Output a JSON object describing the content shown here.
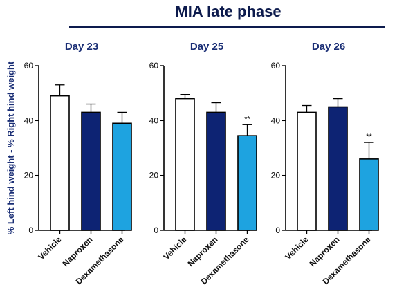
{
  "header": {
    "title": "MIA late phase",
    "ylabel": "% Left hind weight - % Right hind weight"
  },
  "colors": {
    "title": "#0d1b4d",
    "title_rule": "#0d1b4d",
    "panel_title": "#1a2e75",
    "Vehicle": "#ffffff",
    "Naproxen": "#0d2373",
    "Dexamethasone": "#1ea3e0",
    "axis": "#000000"
  },
  "chart_data": [
    {
      "type": "bar",
      "title": "Day 23",
      "categories": [
        "Vehicle",
        "Naproxen",
        "Dexamethasone"
      ],
      "values": [
        49,
        43,
        39
      ],
      "error": [
        4,
        3,
        4
      ],
      "significance": [
        "",
        "",
        ""
      ],
      "ylim": [
        0,
        60
      ],
      "yticks": [
        "0",
        "20",
        "40",
        "60"
      ],
      "ytick_values": [
        0,
        20,
        40,
        60
      ],
      "grid": false
    },
    {
      "type": "bar",
      "title": "Day 25",
      "categories": [
        "Vehicle",
        "Naproxen",
        "Dexamethasone"
      ],
      "values": [
        48,
        43,
        34.5
      ],
      "error": [
        1.5,
        3.5,
        4
      ],
      "significance": [
        "",
        "",
        "**"
      ],
      "ylim": [
        0,
        60
      ],
      "yticks": [
        "0",
        "20",
        "40",
        "60"
      ],
      "ytick_values": [
        0,
        20,
        40,
        60
      ],
      "grid": false
    },
    {
      "type": "bar",
      "title": "Day 26",
      "categories": [
        "Vehicle",
        "Naproxen",
        "Dexamethasone"
      ],
      "values": [
        43,
        45,
        26
      ],
      "error": [
        2.5,
        3,
        6
      ],
      "significance": [
        "",
        "",
        "**"
      ],
      "ylim": [
        0,
        60
      ],
      "yticks": [
        "0",
        "20",
        "40",
        "60"
      ],
      "ytick_values": [
        0,
        20,
        40,
        60
      ],
      "grid": false
    }
  ]
}
